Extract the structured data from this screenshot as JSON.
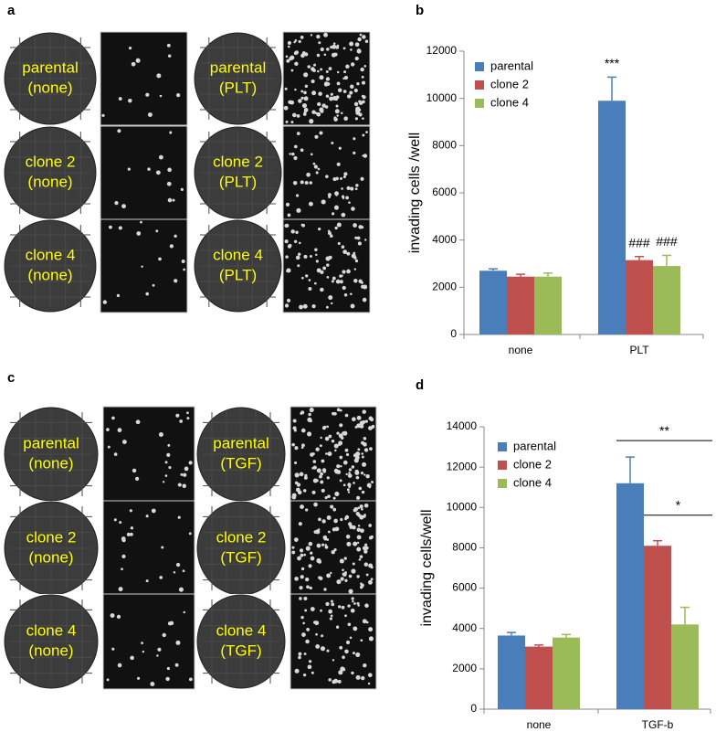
{
  "figure": {
    "panel_a": {
      "label": "a",
      "wells": [
        [
          "parental",
          "(none)"
        ],
        [
          "parental",
          "(PLT)"
        ],
        [
          "clone 2",
          "(none)"
        ],
        [
          "clone 2",
          "(PLT)"
        ],
        [
          "clone 4",
          "(none)"
        ],
        [
          "clone 4",
          "(PLT)"
        ]
      ]
    },
    "panel_c": {
      "label": "c",
      "wells": [
        [
          "parental",
          "(none)"
        ],
        [
          "parental",
          "(TGF)"
        ],
        [
          "clone 2",
          "(none)"
        ],
        [
          "clone 2",
          "(TGF)"
        ],
        [
          "clone 4",
          "(none)"
        ],
        [
          "clone 4",
          "(TGF)"
        ]
      ]
    }
  },
  "chart_data": [
    {
      "type": "bar",
      "panel_label": "b",
      "y_label": "invading cells /well",
      "categories": [
        "none",
        "PLT"
      ],
      "series": [
        {
          "name": "parental",
          "color": "#4a7ebb",
          "values": [
            2700,
            9900
          ],
          "errors": [
            80,
            1000
          ]
        },
        {
          "name": "clone 2",
          "color": "#c0504d",
          "values": [
            2450,
            3150
          ],
          "errors": [
            100,
            150
          ]
        },
        {
          "name": "clone 4",
          "color": "#9bbb59",
          "values": [
            2450,
            2900
          ],
          "errors": [
            150,
            450
          ]
        }
      ],
      "ylim": [
        0,
        12000
      ],
      "yticks": [
        0,
        2000,
        4000,
        6000,
        8000,
        10000,
        12000
      ],
      "legend": "upper left",
      "annotations": [
        "***",
        "###",
        "###"
      ]
    },
    {
      "type": "bar",
      "panel_label": "d",
      "y_label": "invading cells/well",
      "categories": [
        "none",
        "TGF-b"
      ],
      "series": [
        {
          "name": "parental",
          "color": "#4a7ebb",
          "values": [
            3650,
            11200
          ],
          "errors": [
            150,
            1300
          ]
        },
        {
          "name": "clone 2",
          "color": "#c0504d",
          "values": [
            3100,
            8100
          ],
          "errors": [
            80,
            250
          ]
        },
        {
          "name": "clone 4",
          "color": "#9bbb59",
          "values": [
            3550,
            4200
          ],
          "errors": [
            150,
            850
          ]
        }
      ],
      "ylim": [
        0,
        14000
      ],
      "yticks": [
        0,
        2000,
        4000,
        6000,
        8000,
        10000,
        12000,
        14000
      ],
      "legend": "upper left",
      "annotations": [
        "**",
        "*"
      ]
    }
  ]
}
